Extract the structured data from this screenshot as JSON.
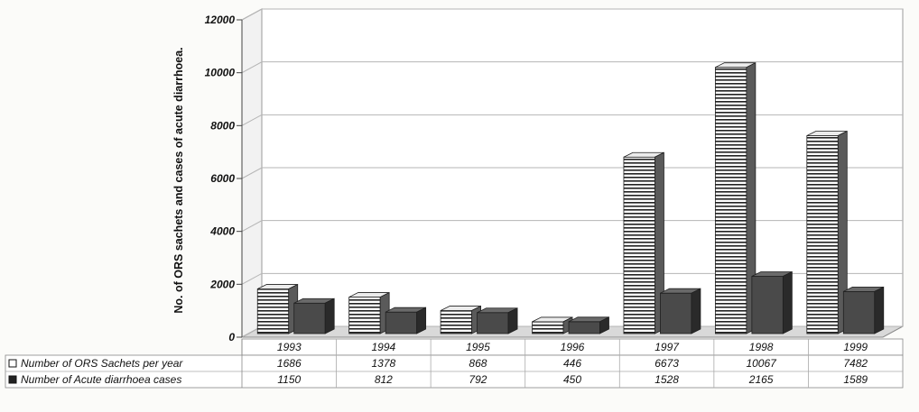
{
  "chart_data": {
    "type": "bar",
    "title": "",
    "xlabel": "",
    "ylabel": "No. of ORS sachets and cases of acute diarrhoea.",
    "ylim": [
      0,
      12000
    ],
    "yticks": [
      "0",
      "2000",
      "4000",
      "6000",
      "8000",
      "10000",
      "12000"
    ],
    "categories": [
      "1993",
      "1994",
      "1995",
      "1996",
      "1997",
      "1998",
      "1999"
    ],
    "series": [
      {
        "name": "Number of ORS Sachets per year",
        "values": [
          1686,
          1378,
          868,
          446,
          6673,
          10067,
          7482
        ],
        "value_labels": [
          "1686",
          "1378",
          "868",
          "446",
          "6673",
          "10067",
          "7482"
        ],
        "color": "#ffffff",
        "pattern": "horizontal-stripes"
      },
      {
        "name": "Number of Acute diarrhoea cases",
        "values": [
          1150,
          812,
          792,
          450,
          1528,
          2165,
          1589
        ],
        "value_labels": [
          "1150",
          "812",
          "792",
          "450",
          "1528",
          "2165",
          "1589"
        ],
        "color": "#3a3a3a",
        "pattern": "solid"
      }
    ],
    "grid": true,
    "legend": "data-table-left",
    "three_d": true
  }
}
